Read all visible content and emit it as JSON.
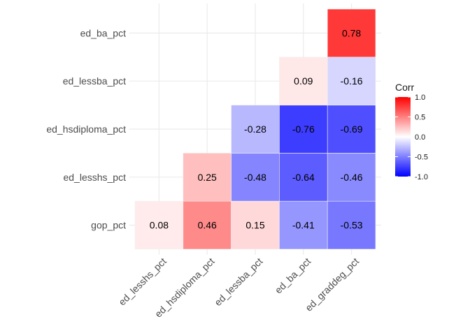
{
  "chart_data": {
    "type": "heatmap",
    "title": "",
    "xlabel": "",
    "ylabel": "",
    "x_categories": [
      "ed_lesshs_pct",
      "ed_hsdiploma_pct",
      "ed_lessba_pct",
      "ed_ba_pct",
      "ed_graddeg_pct"
    ],
    "y_categories": [
      "gop_pct",
      "ed_lesshs_pct",
      "ed_hsdiploma_pct",
      "ed_lessba_pct",
      "ed_ba_pct"
    ],
    "cells": [
      {
        "x": "ed_lesshs_pct",
        "y": "gop_pct",
        "value": 0.08
      },
      {
        "x": "ed_hsdiploma_pct",
        "y": "gop_pct",
        "value": 0.46
      },
      {
        "x": "ed_lessba_pct",
        "y": "gop_pct",
        "value": 0.15
      },
      {
        "x": "ed_ba_pct",
        "y": "gop_pct",
        "value": -0.41
      },
      {
        "x": "ed_graddeg_pct",
        "y": "gop_pct",
        "value": -0.53
      },
      {
        "x": "ed_hsdiploma_pct",
        "y": "ed_lesshs_pct",
        "value": 0.25
      },
      {
        "x": "ed_lessba_pct",
        "y": "ed_lesshs_pct",
        "value": -0.48
      },
      {
        "x": "ed_ba_pct",
        "y": "ed_lesshs_pct",
        "value": -0.64
      },
      {
        "x": "ed_graddeg_pct",
        "y": "ed_lesshs_pct",
        "value": -0.46
      },
      {
        "x": "ed_lessba_pct",
        "y": "ed_hsdiploma_pct",
        "value": -0.28
      },
      {
        "x": "ed_ba_pct",
        "y": "ed_hsdiploma_pct",
        "value": -0.76
      },
      {
        "x": "ed_graddeg_pct",
        "y": "ed_hsdiploma_pct",
        "value": -0.69
      },
      {
        "x": "ed_ba_pct",
        "y": "ed_lessba_pct",
        "value": 0.09
      },
      {
        "x": "ed_graddeg_pct",
        "y": "ed_lessba_pct",
        "value": -0.16
      },
      {
        "x": "ed_graddeg_pct",
        "y": "ed_ba_pct",
        "value": 0.78
      }
    ],
    "legend": {
      "title": "Corr",
      "ticks": [
        "1.0",
        "0.5",
        "0.0",
        "-0.5",
        "-1.0"
      ],
      "range": [
        -1,
        1
      ],
      "placement": "right",
      "colors": {
        "low": "#0000ff",
        "mid": "#ffffff",
        "high": "#ff0000"
      }
    },
    "grid": true
  }
}
